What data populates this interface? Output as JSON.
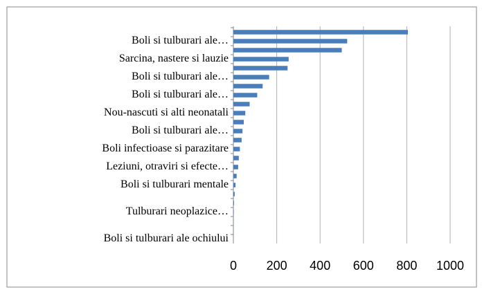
{
  "chart_data": {
    "type": "barh",
    "categories": [
      null,
      "Boli si tulburari ale…",
      null,
      "Sarcina, nastere si lauzie",
      null,
      "Boli si tulburari ale…",
      null,
      "Boli si tulburari ale…",
      null,
      "Nou-nascuti si alti neonatali",
      null,
      "Boli si tulburari ale…",
      null,
      "Boli infectioase si parazitare",
      null,
      "Leziuni, otraviri si efecte…",
      null,
      "Boli si tulburari mentale",
      null,
      null,
      "Tulburari neoplazice…",
      null,
      null,
      "Boli si tulburari ale ochiului"
    ],
    "values": [
      805,
      525,
      500,
      255,
      250,
      165,
      135,
      110,
      75,
      55,
      48,
      42,
      38,
      30,
      25,
      22,
      15,
      10,
      6,
      3,
      2,
      1,
      1,
      0
    ],
    "color": "#4a7ebb",
    "xlim": [
      0,
      1000
    ],
    "xticks": [
      0,
      200,
      400,
      600,
      800,
      1000
    ],
    "grid": true
  }
}
